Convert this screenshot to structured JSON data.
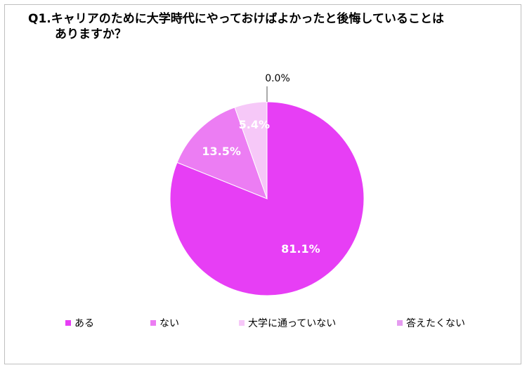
{
  "chart_data": {
    "type": "pie",
    "title_line1": "Q1.キャリアのために大学時代にやっておけばよかったと後悔していることは",
    "title_line2": "ありますか？",
    "slices": [
      {
        "label": "ある",
        "value": 81.1,
        "display": "81.1%",
        "color": "#e73ef5"
      },
      {
        "label": "ない",
        "value": 13.5,
        "display": "13.5%",
        "color": "#ec7df3"
      },
      {
        "label": "大学に通っていない",
        "value": 5.4,
        "display": "5.4%",
        "color": "#f6c8f8"
      },
      {
        "label": "答えたくない",
        "value": 0.0,
        "display": "0.0%",
        "color": "#e59cf0"
      }
    ],
    "legend_position": "bottom"
  }
}
